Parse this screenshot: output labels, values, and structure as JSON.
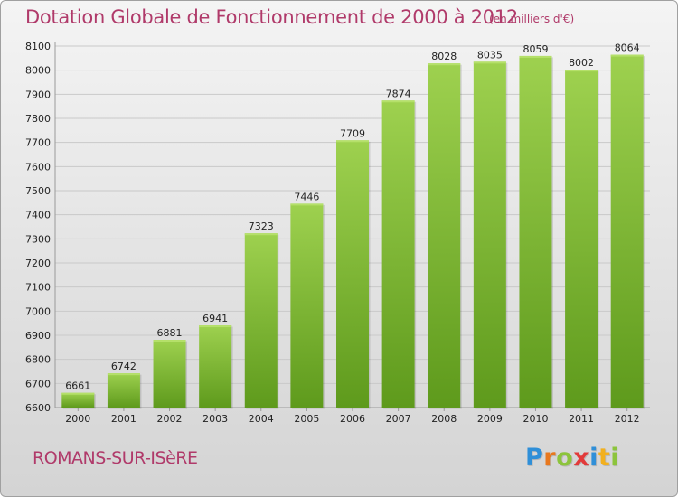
{
  "title": "Dotation Globale de Fonctionnement de 2000 à 2012",
  "unit_note": "(en milliers d'€)",
  "commune": "ROMANS-SUR-ISèRE",
  "brand": {
    "letters": [
      "P",
      "r",
      "o",
      "x",
      "i",
      "t",
      "i"
    ],
    "colors": [
      "#2f8fd8",
      "#e8781e",
      "#8cc43c",
      "#e23a3a",
      "#2f8fd8",
      "#f2b01e",
      "#8cc43c"
    ]
  },
  "chart_data": {
    "type": "bar",
    "title": "Dotation Globale de Fonctionnement de 2000 à 2012",
    "subtitle": "(en milliers d'€)",
    "categories": [
      "2000",
      "2001",
      "2002",
      "2003",
      "2004",
      "2005",
      "2006",
      "2007",
      "2008",
      "2009",
      "2010",
      "2011",
      "2012"
    ],
    "values": [
      6661,
      6742,
      6881,
      6941,
      7323,
      7446,
      7709,
      7874,
      8028,
      8035,
      8059,
      8002,
      8064
    ],
    "ylim": [
      6600,
      8100
    ],
    "yticks": [
      6600,
      6700,
      6800,
      6900,
      7000,
      7100,
      7200,
      7300,
      7400,
      7500,
      7600,
      7700,
      7800,
      7900,
      8000,
      8100
    ],
    "grid": true,
    "bar_color": "#8cc43c"
  }
}
